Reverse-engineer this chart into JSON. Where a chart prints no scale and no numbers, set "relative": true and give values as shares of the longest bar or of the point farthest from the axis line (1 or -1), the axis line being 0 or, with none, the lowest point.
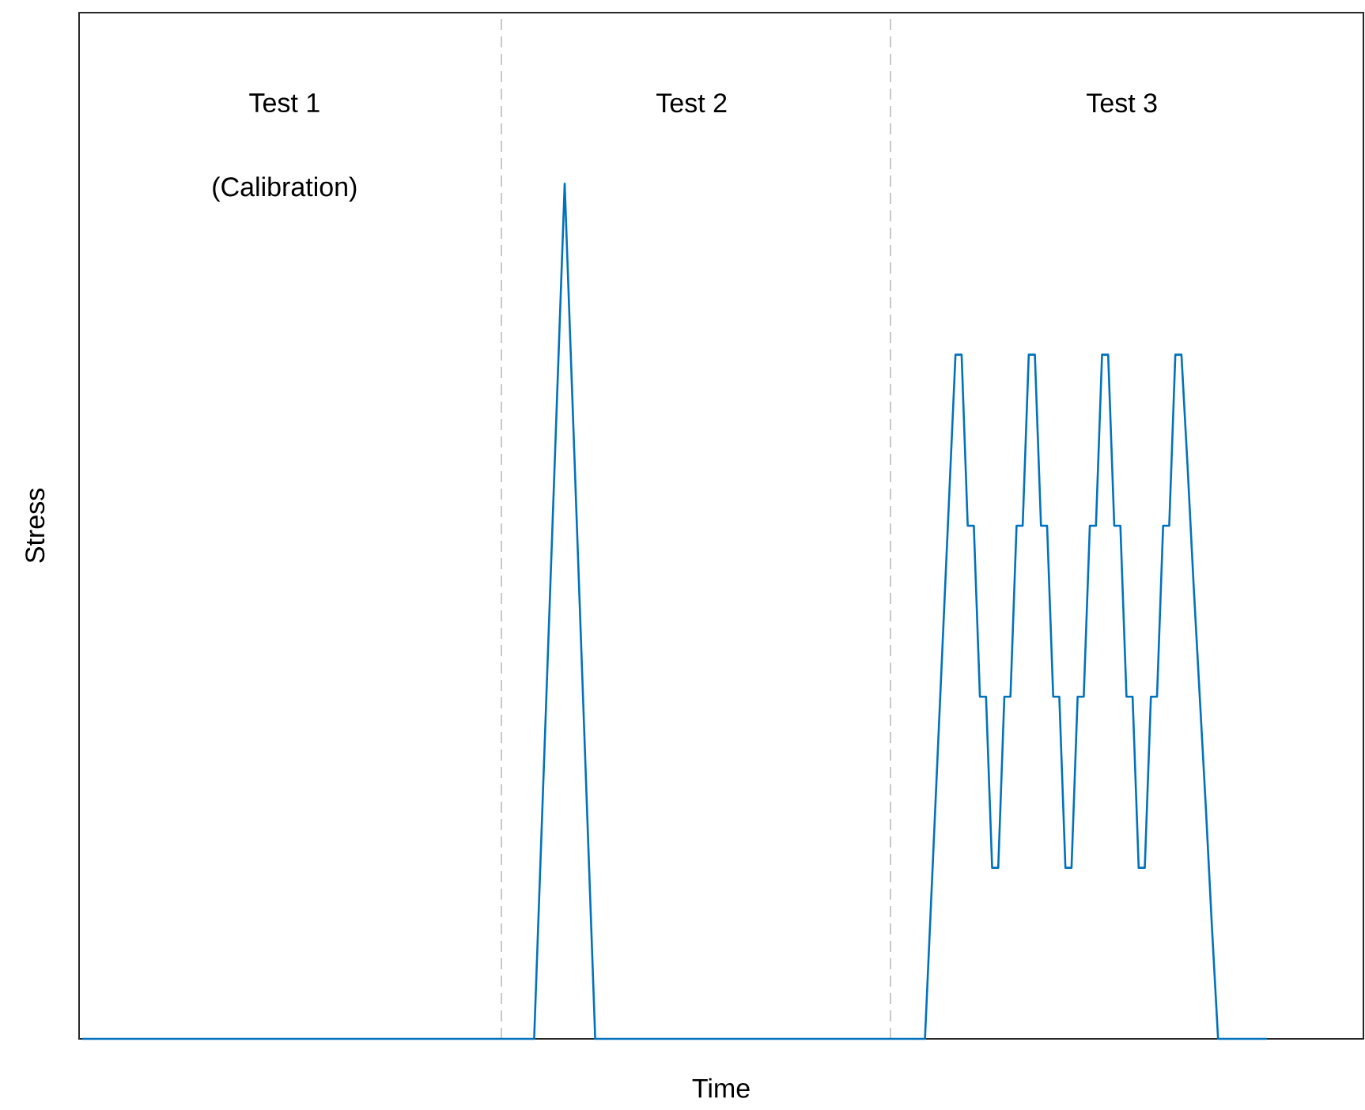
{
  "chart_data": {
    "type": "line",
    "relative": true,
    "xlabel": "Time",
    "ylabel": "Stress",
    "line_style": "solid",
    "annotations": [
      "Test 1",
      "(Calibration)",
      "Test 2",
      "Test 3"
    ],
    "categories": [
      null,
      null,
      null,
      null,
      null,
      null,
      null,
      null,
      null,
      null,
      null,
      null,
      null,
      null,
      null,
      null,
      null,
      null,
      null,
      null,
      null,
      null,
      null,
      null,
      null,
      null,
      null,
      null,
      null,
      null,
      null,
      null,
      null,
      null,
      null,
      null,
      null,
      null,
      null,
      null,
      null,
      null,
      null,
      null,
      null,
      null,
      null,
      null,
      null,
      null,
      null,
      null,
      null,
      null,
      null,
      null,
      null,
      null,
      null,
      null,
      null,
      null,
      null,
      null,
      null,
      null,
      null,
      null,
      null,
      null,
      null,
      null,
      null,
      null,
      null,
      null,
      null,
      null,
      null,
      null,
      null,
      null,
      null,
      null,
      null,
      null,
      null,
      null,
      null,
      null,
      null,
      null,
      null,
      null,
      null,
      null,
      null,
      null,
      null,
      null,
      null,
      null,
      null,
      null,
      null,
      null,
      null,
      null,
      null,
      null,
      null,
      null,
      null,
      null,
      null,
      null,
      null,
      null,
      null,
      null,
      null,
      null,
      null,
      null,
      null,
      null,
      null,
      null,
      null,
      null,
      null,
      null,
      null,
      null,
      null,
      null,
      null,
      null,
      null,
      null,
      null,
      null,
      null,
      null,
      null,
      null,
      null,
      null,
      null,
      null,
      null,
      null,
      null,
      null,
      null,
      null,
      null,
      null,
      null,
      null,
      null,
      null,
      null,
      null,
      null,
      null,
      null,
      null,
      null,
      null,
      null,
      null,
      null,
      null,
      null,
      null,
      null,
      null,
      null,
      null,
      null,
      null,
      null,
      null,
      null,
      null,
      null,
      null,
      null,
      null,
      null,
      null,
      null,
      null,
      null
    ],
    "series": [
      {
        "color": "#0072bd",
        "values": [
          0,
          0,
          0,
          0,
          0,
          0,
          0,
          0,
          0,
          0,
          0,
          0,
          0,
          0,
          0,
          0,
          0,
          0,
          0,
          0,
          0,
          0,
          0,
          0,
          0,
          0,
          0,
          0,
          0,
          0,
          0,
          0,
          0,
          0,
          0,
          0,
          0,
          0,
          0,
          0,
          0,
          0,
          0,
          0,
          0,
          0,
          0,
          0,
          0,
          0,
          0,
          0,
          0,
          0,
          0,
          0,
          0,
          0,
          0,
          0,
          0,
          0,
          0,
          0,
          0,
          0,
          0,
          0,
          0,
          0,
          0,
          0,
          0,
          0,
          0,
          0.2,
          0.4,
          0.6,
          0.8,
          1,
          0.8,
          0.6,
          0.4,
          0.2,
          0,
          0,
          0,
          0,
          0,
          0,
          0,
          0,
          0,
          0,
          0,
          0,
          0,
          0,
          0,
          0,
          0,
          0,
          0,
          0,
          0,
          0,
          0,
          0,
          0,
          0,
          0,
          0,
          0,
          0,
          0,
          0,
          0,
          0,
          0,
          0,
          0,
          0,
          0,
          0,
          0,
          0,
          0,
          0,
          0,
          0,
          0,
          0,
          0,
          0,
          0,
          0,
          0,
          0,
          0,
          0.16,
          0.32,
          0.48,
          0.64,
          0.8,
          0.8,
          0.6,
          0.6,
          0.4,
          0.4,
          0.2,
          0.2,
          0.4,
          0.4,
          0.6,
          0.6,
          0.8,
          0.8,
          0.6,
          0.6,
          0.4,
          0.4,
          0.2,
          0.2,
          0.4,
          0.4,
          0.6,
          0.6,
          0.8,
          0.8,
          0.6,
          0.6,
          0.4,
          0.4,
          0.2,
          0.2,
          0.4,
          0.4,
          0.6,
          0.6,
          0.8,
          0.8,
          0.67,
          0.53,
          0.4,
          0.27,
          0.13,
          0,
          0,
          0,
          0,
          0,
          0,
          0,
          0,
          0
        ]
      }
    ]
  }
}
